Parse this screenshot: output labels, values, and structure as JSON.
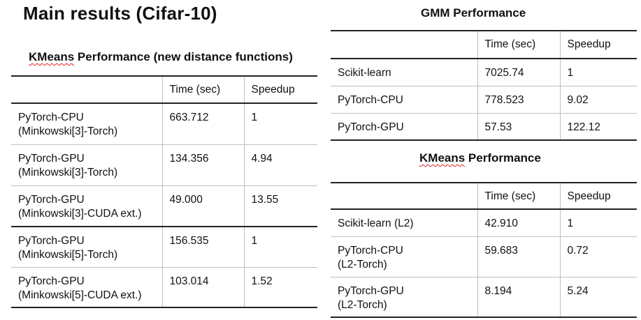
{
  "title": "Main results (Cifar-10)",
  "kmeans_new": {
    "title_underlined": "KMeans",
    "title_rest": " Performance (new distance functions)",
    "headers": [
      "",
      "Time (sec)",
      "Speedup"
    ],
    "rows": [
      {
        "name": "PyTorch-CPU",
        "sub": "(Minkowski[3]-Torch)",
        "time": "663.712",
        "speedup": "1"
      },
      {
        "name": "PyTorch-GPU",
        "sub": "(Minkowski[3]-Torch)",
        "time": "134.356",
        "speedup": "4.94"
      },
      {
        "name": "PyTorch-GPU",
        "sub": "(Minkowski[3]-CUDA ext.)",
        "time": "49.000",
        "speedup": "13.55"
      },
      {
        "name": "PyTorch-GPU",
        "sub": "(Minkowski[5]-Torch)",
        "time": "156.535",
        "speedup": "1"
      },
      {
        "name": "PyTorch-GPU",
        "sub": "(Minkowski[5]-CUDA ext.)",
        "time": "103.014",
        "speedup": "1.52"
      }
    ]
  },
  "gmm": {
    "title": "GMM Performance",
    "headers": [
      "",
      "Time (sec)",
      "Speedup"
    ],
    "rows": [
      {
        "name": "Scikit-learn",
        "time": "7025.74",
        "speedup": "1"
      },
      {
        "name": "PyTorch-CPU",
        "time": "778.523",
        "speedup": "9.02"
      },
      {
        "name": "PyTorch-GPU",
        "time": "57.53",
        "speedup": "122.12"
      }
    ]
  },
  "kmeans": {
    "title_underlined": "KMeans",
    "title_rest": " Performance",
    "headers": [
      "",
      "Time (sec)",
      "Speedup"
    ],
    "rows": [
      {
        "name": "Scikit-learn (L2)",
        "sub": "",
        "time": "42.910",
        "speedup": "1"
      },
      {
        "name": "PyTorch-CPU",
        "sub": "(L2-Torch)",
        "time": "59.683",
        "speedup": "0.72"
      },
      {
        "name": "PyTorch-GPU",
        "sub": "(L2-Torch)",
        "time": "8.194",
        "speedup": "5.24"
      }
    ]
  }
}
